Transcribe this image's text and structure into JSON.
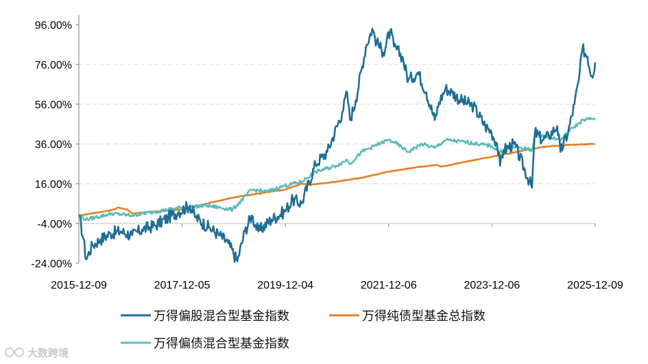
{
  "chart_data": {
    "type": "line",
    "title": "",
    "xlabel": "",
    "ylabel": "",
    "ylim": [
      -24,
      96
    ],
    "y_ticks": [
      "96.00%",
      "76.00%",
      "56.00%",
      "36.00%",
      "16.00%",
      "-4.00%",
      "-24.00%"
    ],
    "y_tick_values": [
      96,
      76,
      56,
      36,
      16,
      -4,
      -24
    ],
    "x_tick_labels": [
      "2015-12-09",
      "2017-12-05",
      "2019-12-04",
      "2021-12-06",
      "2023-12-06",
      "2025-12-09"
    ],
    "x_range": [
      "2015-12-09",
      "2025-12-09"
    ],
    "grid": "horizontal dashed",
    "legend_position": "bottom",
    "series": [
      {
        "name": "万得偏股混合型基金指数",
        "color": "#1f6e94",
        "points": [
          [
            "2015-12-09",
            0
          ],
          [
            "2016-01-12",
            -12
          ],
          [
            "2016-01-28",
            -22
          ],
          [
            "2016-03-15",
            -15
          ],
          [
            "2016-05-10",
            -12
          ],
          [
            "2016-07-20",
            -9
          ],
          [
            "2016-10-01",
            -8
          ],
          [
            "2016-12-20",
            -10
          ],
          [
            "2017-03-01",
            -7
          ],
          [
            "2017-06-01",
            -5
          ],
          [
            "2017-09-01",
            -1
          ],
          [
            "2017-11-15",
            2
          ],
          [
            "2018-02-01",
            5
          ],
          [
            "2018-03-15",
            -1
          ],
          [
            "2018-06-15",
            -6
          ],
          [
            "2018-09-01",
            -10
          ],
          [
            "2018-11-01",
            -14
          ],
          [
            "2019-01-03",
            -23
          ],
          [
            "2019-02-25",
            -8
          ],
          [
            "2019-04-15",
            0
          ],
          [
            "2019-06-01",
            -8
          ],
          [
            "2019-09-01",
            -2
          ],
          [
            "2019-12-04",
            2
          ],
          [
            "2020-02-01",
            8
          ],
          [
            "2020-04-01",
            6
          ],
          [
            "2020-07-10",
            26
          ],
          [
            "2020-10-01",
            32
          ],
          [
            "2021-01-15",
            52
          ],
          [
            "2021-02-18",
            62
          ],
          [
            "2021-03-10",
            48
          ],
          [
            "2021-04-20",
            58
          ],
          [
            "2021-07-01",
            85
          ],
          [
            "2021-08-15",
            94
          ],
          [
            "2021-09-15",
            87
          ],
          [
            "2021-11-01",
            82
          ],
          [
            "2021-12-20",
            93
          ],
          [
            "2022-01-15",
            85
          ],
          [
            "2022-03-15",
            80
          ],
          [
            "2022-04-27",
            68
          ],
          [
            "2022-07-05",
            72
          ],
          [
            "2022-09-01",
            62
          ],
          [
            "2022-10-31",
            48
          ],
          [
            "2022-12-01",
            57
          ],
          [
            "2023-01-15",
            64
          ],
          [
            "2023-03-01",
            62
          ],
          [
            "2023-05-01",
            58
          ],
          [
            "2023-08-01",
            55
          ],
          [
            "2023-10-23",
            45
          ],
          [
            "2023-12-06",
            42
          ],
          [
            "2024-01-15",
            36
          ],
          [
            "2024-02-05",
            25
          ],
          [
            "2024-03-01",
            33
          ],
          [
            "2024-05-15",
            36
          ],
          [
            "2024-09-18",
            14
          ],
          [
            "2024-10-08",
            42
          ],
          [
            "2024-12-01",
            38
          ],
          [
            "2025-01-15",
            40
          ],
          [
            "2025-03-15",
            45
          ],
          [
            "2025-04-07",
            32
          ],
          [
            "2025-06-01",
            42
          ],
          [
            "2025-07-15",
            56
          ],
          [
            "2025-08-15",
            68
          ],
          [
            "2025-09-10",
            84
          ],
          [
            "2025-10-15",
            80
          ],
          [
            "2025-11-15",
            70
          ],
          [
            "2025-12-09",
            77
          ]
        ]
      },
      {
        "name": "万得纯债型基金总指数",
        "color": "#e67e22",
        "points": [
          [
            "2015-12-09",
            0
          ],
          [
            "2016-03-01",
            1
          ],
          [
            "2016-06-01",
            2
          ],
          [
            "2016-08-01",
            2.8
          ],
          [
            "2016-09-15",
            4
          ],
          [
            "2016-11-15",
            3
          ],
          [
            "2016-12-20",
            1
          ],
          [
            "2017-03-01",
            1.5
          ],
          [
            "2017-06-01",
            2
          ],
          [
            "2017-12-01",
            3
          ],
          [
            "2018-06-01",
            6
          ],
          [
            "2018-12-01",
            9
          ],
          [
            "2019-06-01",
            11
          ],
          [
            "2019-12-04",
            13
          ],
          [
            "2020-04-01",
            16
          ],
          [
            "2020-06-01",
            15.5
          ],
          [
            "2020-12-01",
            17
          ],
          [
            "2021-06-01",
            19
          ],
          [
            "2021-12-06",
            22
          ],
          [
            "2022-06-01",
            24
          ],
          [
            "2022-11-15",
            25.5
          ],
          [
            "2022-12-15",
            24.5
          ],
          [
            "2023-06-01",
            27
          ],
          [
            "2023-12-06",
            29.5
          ],
          [
            "2024-06-01",
            32
          ],
          [
            "2024-12-01",
            34.5
          ],
          [
            "2025-06-01",
            35.5
          ],
          [
            "2025-12-09",
            36
          ]
        ]
      },
      {
        "name": "万得偏债混合型基金指数",
        "color": "#5cbcba",
        "points": [
          [
            "2015-12-09",
            0
          ],
          [
            "2016-01-28",
            -2
          ],
          [
            "2016-04-01",
            -1
          ],
          [
            "2016-08-01",
            1
          ],
          [
            "2016-12-20",
            0
          ],
          [
            "2017-06-01",
            2
          ],
          [
            "2017-12-05",
            4
          ],
          [
            "2018-06-01",
            5
          ],
          [
            "2018-12-01",
            3
          ],
          [
            "2019-04-15",
            13
          ],
          [
            "2019-08-01",
            12
          ],
          [
            "2019-12-04",
            15
          ],
          [
            "2020-04-01",
            17
          ],
          [
            "2020-07-10",
            22
          ],
          [
            "2020-12-01",
            25
          ],
          [
            "2021-02-18",
            28
          ],
          [
            "2021-03-10",
            26
          ],
          [
            "2021-06-01",
            32
          ],
          [
            "2021-09-01",
            35
          ],
          [
            "2021-12-06",
            38
          ],
          [
            "2022-01-15",
            37
          ],
          [
            "2022-04-27",
            32
          ],
          [
            "2022-08-01",
            36
          ],
          [
            "2022-10-31",
            34
          ],
          [
            "2023-01-15",
            38
          ],
          [
            "2023-06-01",
            37
          ],
          [
            "2023-12-06",
            35
          ],
          [
            "2024-02-05",
            32
          ],
          [
            "2024-04-15",
            35
          ],
          [
            "2024-09-18",
            33
          ],
          [
            "2024-10-08",
            40
          ],
          [
            "2025-01-01",
            40
          ],
          [
            "2025-04-07",
            38
          ],
          [
            "2025-07-01",
            44
          ],
          [
            "2025-09-15",
            48
          ],
          [
            "2025-12-09",
            49
          ]
        ]
      }
    ]
  },
  "watermark": {
    "text": "大数跨境"
  }
}
